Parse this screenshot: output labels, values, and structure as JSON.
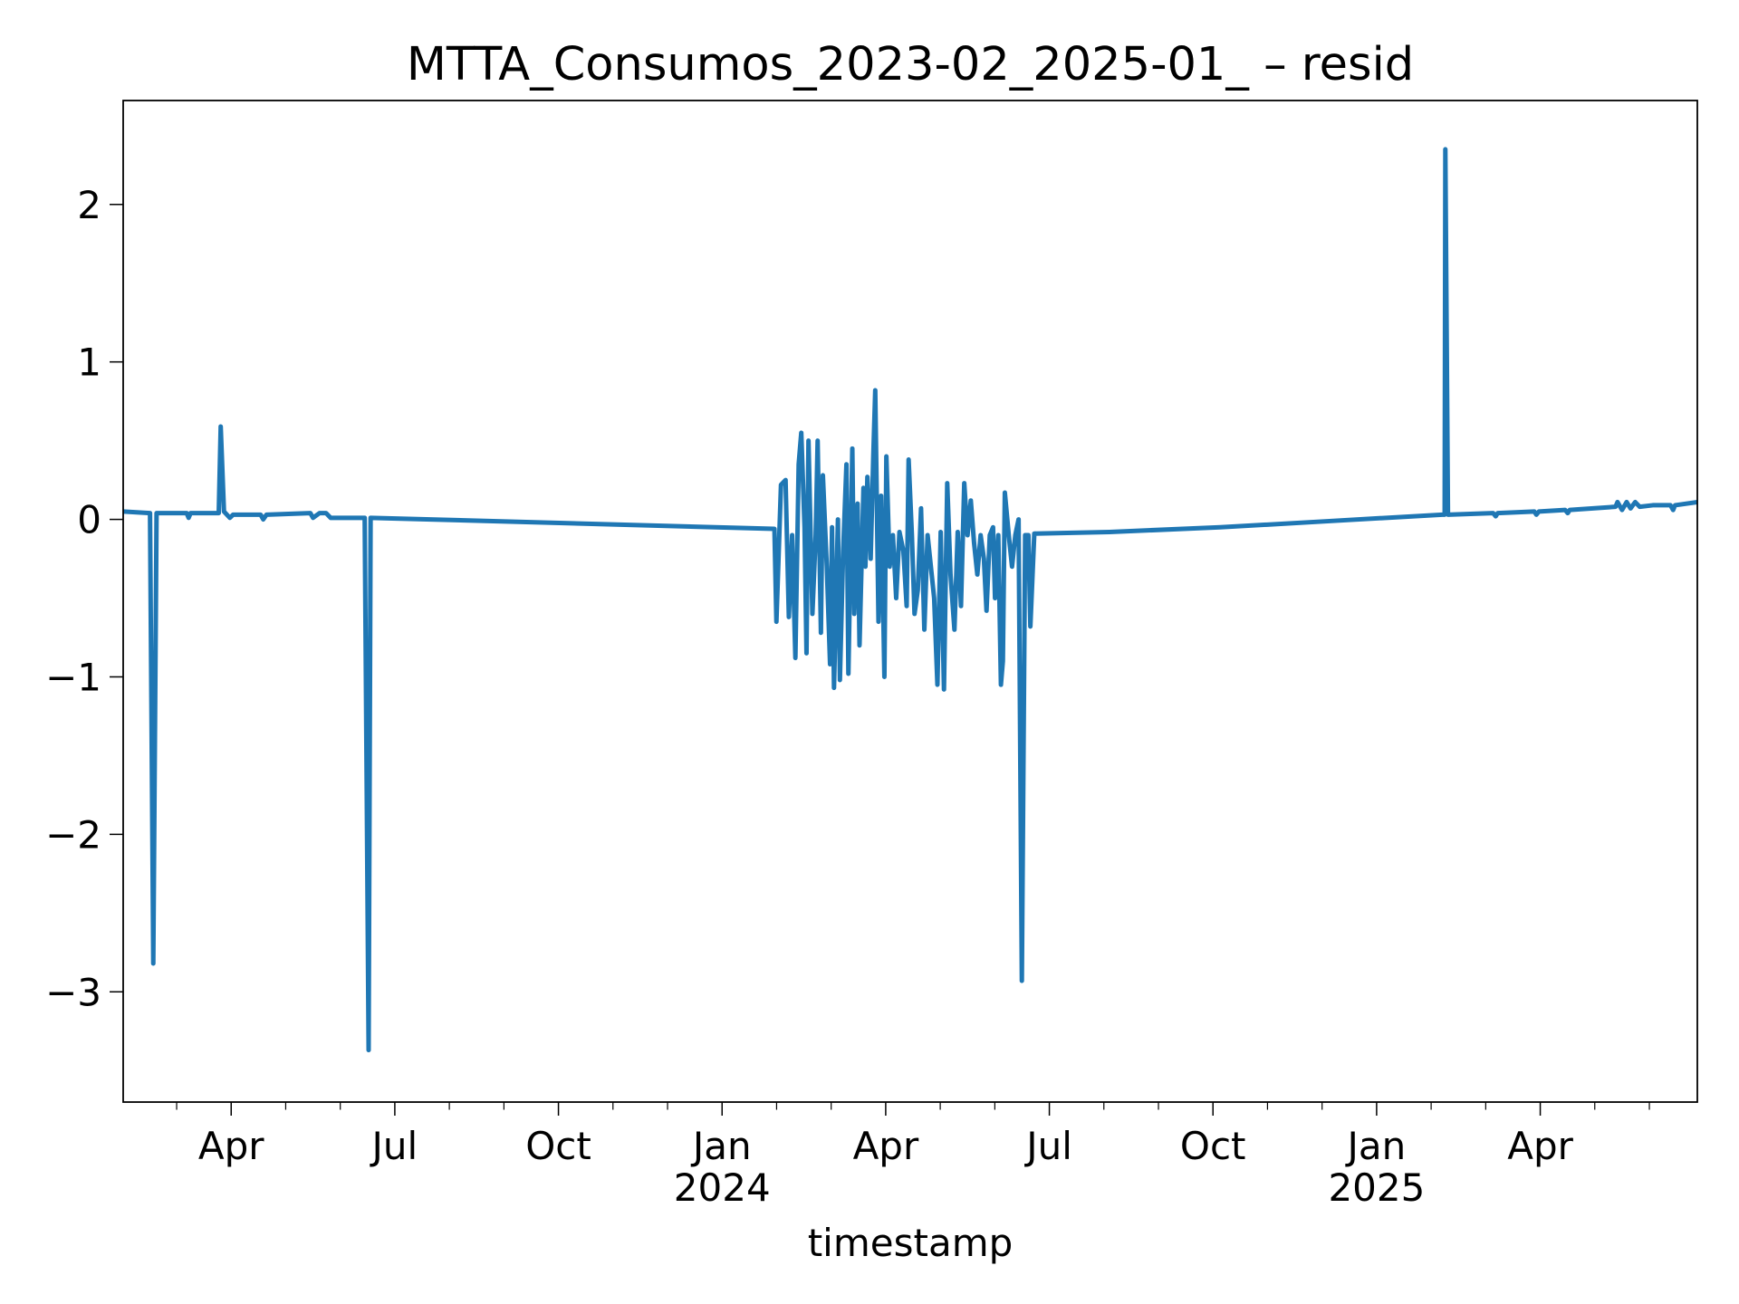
{
  "chart_data": {
    "type": "line",
    "title": "MTTA_Consumos_2023-02_2025-01_ – resid",
    "xlabel": "timestamp",
    "color": "#1f77b4",
    "x": [
      2023.085,
      2023.126,
      2023.131,
      2023.136,
      2023.182,
      2023.185,
      2023.188,
      2023.231,
      2023.234,
      2023.239,
      2023.248,
      2023.253,
      2023.295,
      2023.299,
      2023.304,
      2023.371,
      2023.375,
      2023.385,
      2023.395,
      2023.402,
      2023.414,
      2023.454,
      2023.46,
      2023.463,
      2024.08,
      2024.083,
      2024.09,
      2024.097,
      2024.102,
      2024.107,
      2024.112,
      2024.117,
      2024.121,
      2024.126,
      2024.129,
      2024.132,
      2024.138,
      2024.143,
      2024.146,
      2024.151,
      2024.154,
      2024.16,
      2024.165,
      2024.168,
      2024.171,
      2024.177,
      2024.18,
      2024.185,
      2024.19,
      2024.193,
      2024.199,
      2024.202,
      2024.207,
      2024.21,
      2024.216,
      2024.219,
      2024.222,
      2024.227,
      2024.231,
      2024.234,
      2024.239,
      2024.243,
      2024.248,
      2024.251,
      2024.256,
      2024.261,
      2024.266,
      2024.271,
      2024.277,
      2024.282,
      2024.285,
      2024.29,
      2024.294,
      2024.299,
      2024.304,
      2024.309,
      2024.314,
      2024.319,
      2024.324,
      2024.329,
      2024.334,
      2024.339,
      2024.344,
      2024.349,
      2024.355,
      2024.36,
      2024.365,
      2024.37,
      2024.375,
      2024.38,
      2024.385,
      2024.39,
      2024.395,
      2024.4,
      2024.404,
      2024.409,
      2024.414,
      2024.417,
      2024.422,
      2024.426,
      2024.429,
      2024.432,
      2024.438,
      2024.443,
      2024.448,
      2024.453,
      2024.458,
      2024.463,
      2024.468,
      2024.471,
      2024.477,
      2024.592,
      2024.761,
      2024.931,
      2025.1,
      2025.104,
      2025.105,
      2025.109,
      2025.178,
      2025.182,
      2025.185,
      2025.241,
      2025.244,
      2025.248,
      2025.288,
      2025.292,
      2025.295,
      2025.365,
      2025.368,
      2025.375,
      2025.382,
      2025.388,
      2025.395,
      2025.402,
      2025.422,
      2025.449,
      2025.453,
      2025.456,
      2025.49
    ],
    "values": [
      0.05,
      0.04,
      -2.82,
      0.04,
      0.04,
      0.01,
      0.04,
      0.04,
      0.59,
      0.05,
      0.01,
      0.03,
      0.03,
      0.0,
      0.03,
      0.04,
      0.01,
      0.04,
      0.04,
      0.01,
      0.01,
      0.01,
      -3.37,
      0.01,
      -0.06,
      -0.65,
      0.22,
      0.25,
      -0.62,
      -0.1,
      -0.88,
      0.35,
      0.55,
      -0.05,
      -0.85,
      0.5,
      -0.6,
      -0.1,
      0.5,
      -0.72,
      0.28,
      -0.3,
      -0.92,
      -0.05,
      -1.07,
      0.0,
      -1.02,
      -0.2,
      0.35,
      -0.98,
      0.45,
      -0.6,
      0.1,
      -0.8,
      0.2,
      -0.3,
      0.27,
      -0.25,
      0.4,
      0.82,
      -0.65,
      0.15,
      -1.0,
      0.4,
      -0.3,
      -0.1,
      -0.5,
      -0.08,
      -0.2,
      -0.55,
      0.38,
      -0.1,
      -0.6,
      -0.45,
      0.07,
      -0.7,
      -0.1,
      -0.3,
      -0.5,
      -1.05,
      -0.08,
      -1.08,
      0.23,
      -0.35,
      -0.7,
      -0.08,
      -0.55,
      0.23,
      -0.1,
      0.12,
      -0.15,
      -0.35,
      -0.1,
      -0.25,
      -0.58,
      -0.1,
      -0.05,
      -0.5,
      -0.1,
      -1.05,
      -0.9,
      0.17,
      -0.1,
      -0.3,
      -0.1,
      0.0,
      -2.93,
      -0.1,
      -0.1,
      -0.68,
      -0.09,
      -0.08,
      -0.05,
      -0.01,
      0.03,
      0.03,
      2.35,
      0.03,
      0.04,
      0.02,
      0.04,
      0.05,
      0.03,
      0.05,
      0.06,
      0.04,
      0.06,
      0.08,
      0.11,
      0.06,
      0.11,
      0.07,
      0.11,
      0.08,
      0.09,
      0.09,
      0.06,
      0.09,
      0.11
    ],
    "xlim": [
      2023.085,
      2025.49
    ],
    "ylim": [
      -3.7,
      2.66
    ],
    "xticks": [
      {
        "value": 2023.25,
        "label": "Apr"
      },
      {
        "value": 2023.5,
        "label": "Jul"
      },
      {
        "value": 2023.75,
        "label": "Oct"
      },
      {
        "value": 2024.0,
        "label": "Jan 2024"
      },
      {
        "value": 2024.25,
        "label": "Apr"
      },
      {
        "value": 2024.5,
        "label": "Jul"
      },
      {
        "value": 2024.75,
        "label": "Oct"
      },
      {
        "value": 2025.0,
        "label": "Jan 2025"
      },
      {
        "value": 2025.25,
        "label": "Apr"
      }
    ],
    "xminorticks": [
      2023.1667,
      2023.3333,
      2023.4167,
      2023.5833,
      2023.6667,
      2023.8333,
      2023.9167,
      2024.0833,
      2024.1667,
      2024.3333,
      2024.4167,
      2024.5833,
      2024.6667,
      2024.8333,
      2024.9167,
      2025.0833,
      2025.1667,
      2025.3333,
      2025.4167
    ],
    "yticks": [
      {
        "value": -3,
        "label": "−3"
      },
      {
        "value": -2,
        "label": "−2"
      },
      {
        "value": -1,
        "label": "−1"
      },
      0,
      1,
      2
    ],
    "grid": false
  }
}
